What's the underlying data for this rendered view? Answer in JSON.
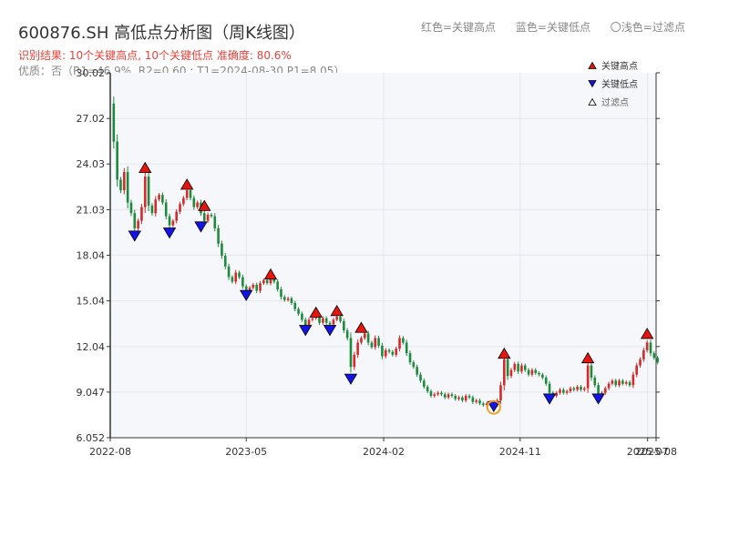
{
  "title": "600876.SH 高低点分析图（周K线图）",
  "subtitle_result": "识别结果: 10个关键高点, 10个关键低点   准确度: 80.6%",
  "subtitle_quality": "优质：否（R1=46.9%, R2=0.60 ; T1=2024-08-30 P1=8.05）",
  "top_legend": {
    "red": "红色=关键高点",
    "blue": "蓝色=关键低点",
    "light": "〇浅色=过滤点"
  },
  "colors": {
    "up": "#d42a2a",
    "down": "#1e8a3c",
    "high_marker": "#e8150f",
    "low_marker": "#1414e6",
    "filtered_marker": "#f0a020",
    "plot_bg": "#f5f7fa",
    "grid": "#e3e8ee",
    "axis": "#333333"
  },
  "chart_data": {
    "type": "candlestick",
    "x_axis": {
      "tick_labels": [
        "2022-08",
        "2023-05",
        "2024-02",
        "2024-11",
        "2025-07",
        "2025-08"
      ],
      "tick_dates": [
        "2022-08-01",
        "2023-05-01",
        "2024-02-01",
        "2024-11-01",
        "2025-07-15",
        "2025-08-01"
      ],
      "range": [
        "2022-08-01",
        "2025-08-01"
      ]
    },
    "y_axis": {
      "tick_labels": [
        "6.052",
        "9.047",
        "12.04",
        "15.04",
        "18.04",
        "21.03",
        "24.03",
        "27.02",
        "30.02"
      ],
      "range": [
        6.052,
        30.02
      ]
    },
    "legend": {
      "placement": "top-right",
      "entries": [
        {
          "label": "关键高点",
          "marker": "triangle-up",
          "color": "#e8150f"
        },
        {
          "label": "关键低点",
          "marker": "triangle-down",
          "color": "#1414e6"
        },
        {
          "label": "过滤点",
          "marker": "triangle-up-outline",
          "color": "#ffffff"
        }
      ]
    },
    "close_path": [
      [
        "2022-08-01",
        28.0
      ],
      [
        "2022-08-08",
        25.5
      ],
      [
        "2022-08-15",
        23.0
      ],
      [
        "2022-08-22",
        22.3
      ],
      [
        "2022-08-29",
        23.5
      ],
      [
        "2022-09-05",
        21.5
      ],
      [
        "2022-09-12",
        20.8
      ],
      [
        "2022-09-19",
        19.8
      ],
      [
        "2022-09-26",
        20.3
      ],
      [
        "2022-10-03",
        21.2
      ],
      [
        "2022-10-10",
        23.2
      ],
      [
        "2022-10-17",
        21.3
      ],
      [
        "2022-10-24",
        20.8
      ],
      [
        "2022-10-31",
        21.7
      ],
      [
        "2022-11-07",
        22.0
      ],
      [
        "2022-11-14",
        21.5
      ],
      [
        "2022-11-21",
        20.6
      ],
      [
        "2022-11-28",
        20.0
      ],
      [
        "2022-12-05",
        20.3
      ],
      [
        "2022-12-12",
        20.9
      ],
      [
        "2022-12-19",
        21.4
      ],
      [
        "2022-12-26",
        21.8
      ],
      [
        "2023-01-02",
        22.3
      ],
      [
        "2023-01-09",
        21.8
      ],
      [
        "2023-01-16",
        21.2
      ],
      [
        "2023-01-23",
        21.5
      ],
      [
        "2023-01-30",
        20.8
      ],
      [
        "2023-02-06",
        20.3
      ],
      [
        "2023-02-13",
        20.7
      ],
      [
        "2023-02-20",
        20.6
      ],
      [
        "2023-02-27",
        19.8
      ],
      [
        "2023-03-06",
        18.8
      ],
      [
        "2023-03-13",
        18.0
      ],
      [
        "2023-03-20",
        17.3
      ],
      [
        "2023-03-27",
        16.6
      ],
      [
        "2023-04-03",
        16.3
      ],
      [
        "2023-04-10",
        16.9
      ],
      [
        "2023-04-17",
        16.6
      ],
      [
        "2023-04-24",
        16.0
      ],
      [
        "2023-05-01",
        15.7
      ],
      [
        "2023-05-08",
        15.9
      ],
      [
        "2023-05-15",
        16.1
      ],
      [
        "2023-05-22",
        15.7
      ],
      [
        "2023-05-29",
        16.2
      ],
      [
        "2023-06-05",
        16.4
      ],
      [
        "2023-06-12",
        16.2
      ],
      [
        "2023-06-19",
        16.6
      ],
      [
        "2023-06-26",
        16.3
      ],
      [
        "2023-07-03",
        15.8
      ],
      [
        "2023-07-10",
        15.3
      ],
      [
        "2023-07-17",
        15.1
      ],
      [
        "2023-07-24",
        15.2
      ],
      [
        "2023-07-31",
        14.9
      ],
      [
        "2023-08-07",
        14.5
      ],
      [
        "2023-08-14",
        14.2
      ],
      [
        "2023-08-21",
        13.8
      ],
      [
        "2023-08-28",
        13.4
      ],
      [
        "2023-09-04",
        13.8
      ],
      [
        "2023-09-11",
        13.9
      ],
      [
        "2023-09-18",
        14.0
      ],
      [
        "2023-09-25",
        13.6
      ],
      [
        "2023-10-02",
        13.9
      ],
      [
        "2023-10-09",
        13.6
      ],
      [
        "2023-10-16",
        13.5
      ],
      [
        "2023-10-23",
        13.8
      ],
      [
        "2023-10-30",
        14.0
      ],
      [
        "2023-11-06",
        13.7
      ],
      [
        "2023-11-13",
        13.1
      ],
      [
        "2023-11-20",
        12.6
      ],
      [
        "2023-11-27",
        10.7
      ],
      [
        "2023-12-04",
        11.5
      ],
      [
        "2023-12-11",
        12.3
      ],
      [
        "2023-12-18",
        12.6
      ],
      [
        "2023-12-25",
        12.9
      ],
      [
        "2024-01-01",
        12.3
      ],
      [
        "2024-01-08",
        12.0
      ],
      [
        "2024-01-15",
        12.6
      ],
      [
        "2024-01-22",
        12.1
      ],
      [
        "2024-01-29",
        11.4
      ],
      [
        "2024-02-05",
        11.8
      ],
      [
        "2024-02-12",
        11.7
      ],
      [
        "2024-02-19",
        11.5
      ],
      [
        "2024-02-26",
        11.9
      ],
      [
        "2024-03-04",
        12.6
      ],
      [
        "2024-03-11",
        12.3
      ],
      [
        "2024-03-18",
        11.6
      ],
      [
        "2024-03-25",
        11.0
      ],
      [
        "2024-04-01",
        10.7
      ],
      [
        "2024-04-08",
        10.2
      ],
      [
        "2024-04-15",
        9.8
      ],
      [
        "2024-04-22",
        9.4
      ],
      [
        "2024-04-29",
        9.1
      ],
      [
        "2024-05-06",
        8.8
      ],
      [
        "2024-05-13",
        8.9
      ],
      [
        "2024-05-20",
        9.0
      ],
      [
        "2024-05-27",
        8.9
      ],
      [
        "2024-06-03",
        8.7
      ],
      [
        "2024-06-10",
        8.9
      ],
      [
        "2024-06-17",
        8.8
      ],
      [
        "2024-06-24",
        8.6
      ],
      [
        "2024-07-01",
        8.7
      ],
      [
        "2024-07-08",
        8.5
      ],
      [
        "2024-07-15",
        8.8
      ],
      [
        "2024-07-22",
        8.7
      ],
      [
        "2024-07-29",
        8.4
      ],
      [
        "2024-08-05",
        8.5
      ],
      [
        "2024-08-12",
        8.3
      ],
      [
        "2024-08-19",
        8.2
      ],
      [
        "2024-08-26",
        8.3
      ],
      [
        "2024-09-02",
        8.4
      ],
      [
        "2024-09-09",
        8.2
      ],
      [
        "2024-09-16",
        8.5
      ],
      [
        "2024-09-23",
        9.5
      ],
      [
        "2024-09-30",
        11.2
      ],
      [
        "2024-10-07",
        10.1
      ],
      [
        "2024-10-14",
        10.5
      ],
      [
        "2024-10-21",
        10.9
      ],
      [
        "2024-10-28",
        10.4
      ],
      [
        "2024-11-04",
        10.8
      ],
      [
        "2024-11-11",
        10.5
      ],
      [
        "2024-11-18",
        10.2
      ],
      [
        "2024-11-25",
        10.5
      ],
      [
        "2024-12-02",
        10.3
      ],
      [
        "2024-12-09",
        10.2
      ],
      [
        "2024-12-16",
        10.0
      ],
      [
        "2024-12-23",
        9.6
      ],
      [
        "2024-12-30",
        9.0
      ],
      [
        "2025-01-06",
        8.8
      ],
      [
        "2025-01-13",
        9.0
      ],
      [
        "2025-01-20",
        9.2
      ],
      [
        "2025-01-27",
        9.0
      ],
      [
        "2025-02-03",
        9.1
      ],
      [
        "2025-02-10",
        9.3
      ],
      [
        "2025-02-17",
        9.2
      ],
      [
        "2025-02-24",
        9.4
      ],
      [
        "2025-03-03",
        9.2
      ],
      [
        "2025-03-10",
        9.3
      ],
      [
        "2025-03-17",
        10.8
      ],
      [
        "2025-03-24",
        10.0
      ],
      [
        "2025-03-31",
        9.5
      ],
      [
        "2025-04-07",
        8.8
      ],
      [
        "2025-04-14",
        9.0
      ],
      [
        "2025-04-21",
        9.3
      ],
      [
        "2025-04-28",
        9.6
      ],
      [
        "2025-05-05",
        9.8
      ],
      [
        "2025-05-12",
        9.5
      ],
      [
        "2025-05-19",
        9.8
      ],
      [
        "2025-05-26",
        9.6
      ],
      [
        "2025-06-02",
        9.7
      ],
      [
        "2025-06-09",
        9.5
      ],
      [
        "2025-06-16",
        10.2
      ],
      [
        "2025-06-23",
        10.8
      ],
      [
        "2025-06-30",
        11.2
      ],
      [
        "2025-07-07",
        11.8
      ],
      [
        "2025-07-14",
        12.3
      ],
      [
        "2025-07-21",
        11.6
      ],
      [
        "2025-07-28",
        11.3
      ],
      [
        "2025-08-04",
        11.0
      ]
    ],
    "key_highs": [
      {
        "date": "2022-10-10",
        "value": 23.8
      },
      {
        "date": "2023-01-02",
        "value": 22.7
      },
      {
        "date": "2023-02-06",
        "value": 21.3
      },
      {
        "date": "2023-06-19",
        "value": 16.8
      },
      {
        "date": "2023-09-18",
        "value": 14.3
      },
      {
        "date": "2023-10-30",
        "value": 14.4
      },
      {
        "date": "2023-12-18",
        "value": 13.3
      },
      {
        "date": "2024-09-30",
        "value": 11.6
      },
      {
        "date": "2025-03-17",
        "value": 11.3
      },
      {
        "date": "2025-07-14",
        "value": 12.9
      }
    ],
    "key_lows": [
      {
        "date": "2022-09-19",
        "value": 19.3
      },
      {
        "date": "2022-11-28",
        "value": 19.5
      },
      {
        "date": "2023-01-30",
        "value": 19.9
      },
      {
        "date": "2023-05-01",
        "value": 15.4
      },
      {
        "date": "2023-08-28",
        "value": 13.1
      },
      {
        "date": "2023-10-16",
        "value": 13.1
      },
      {
        "date": "2023-11-27",
        "value": 9.9
      },
      {
        "date": "2024-09-09",
        "value": 8.1
      },
      {
        "date": "2024-12-30",
        "value": 8.6
      },
      {
        "date": "2025-04-07",
        "value": 8.6
      }
    ],
    "filtered_points": [
      {
        "date": "2024-09-09",
        "value": 8.05
      }
    ]
  }
}
